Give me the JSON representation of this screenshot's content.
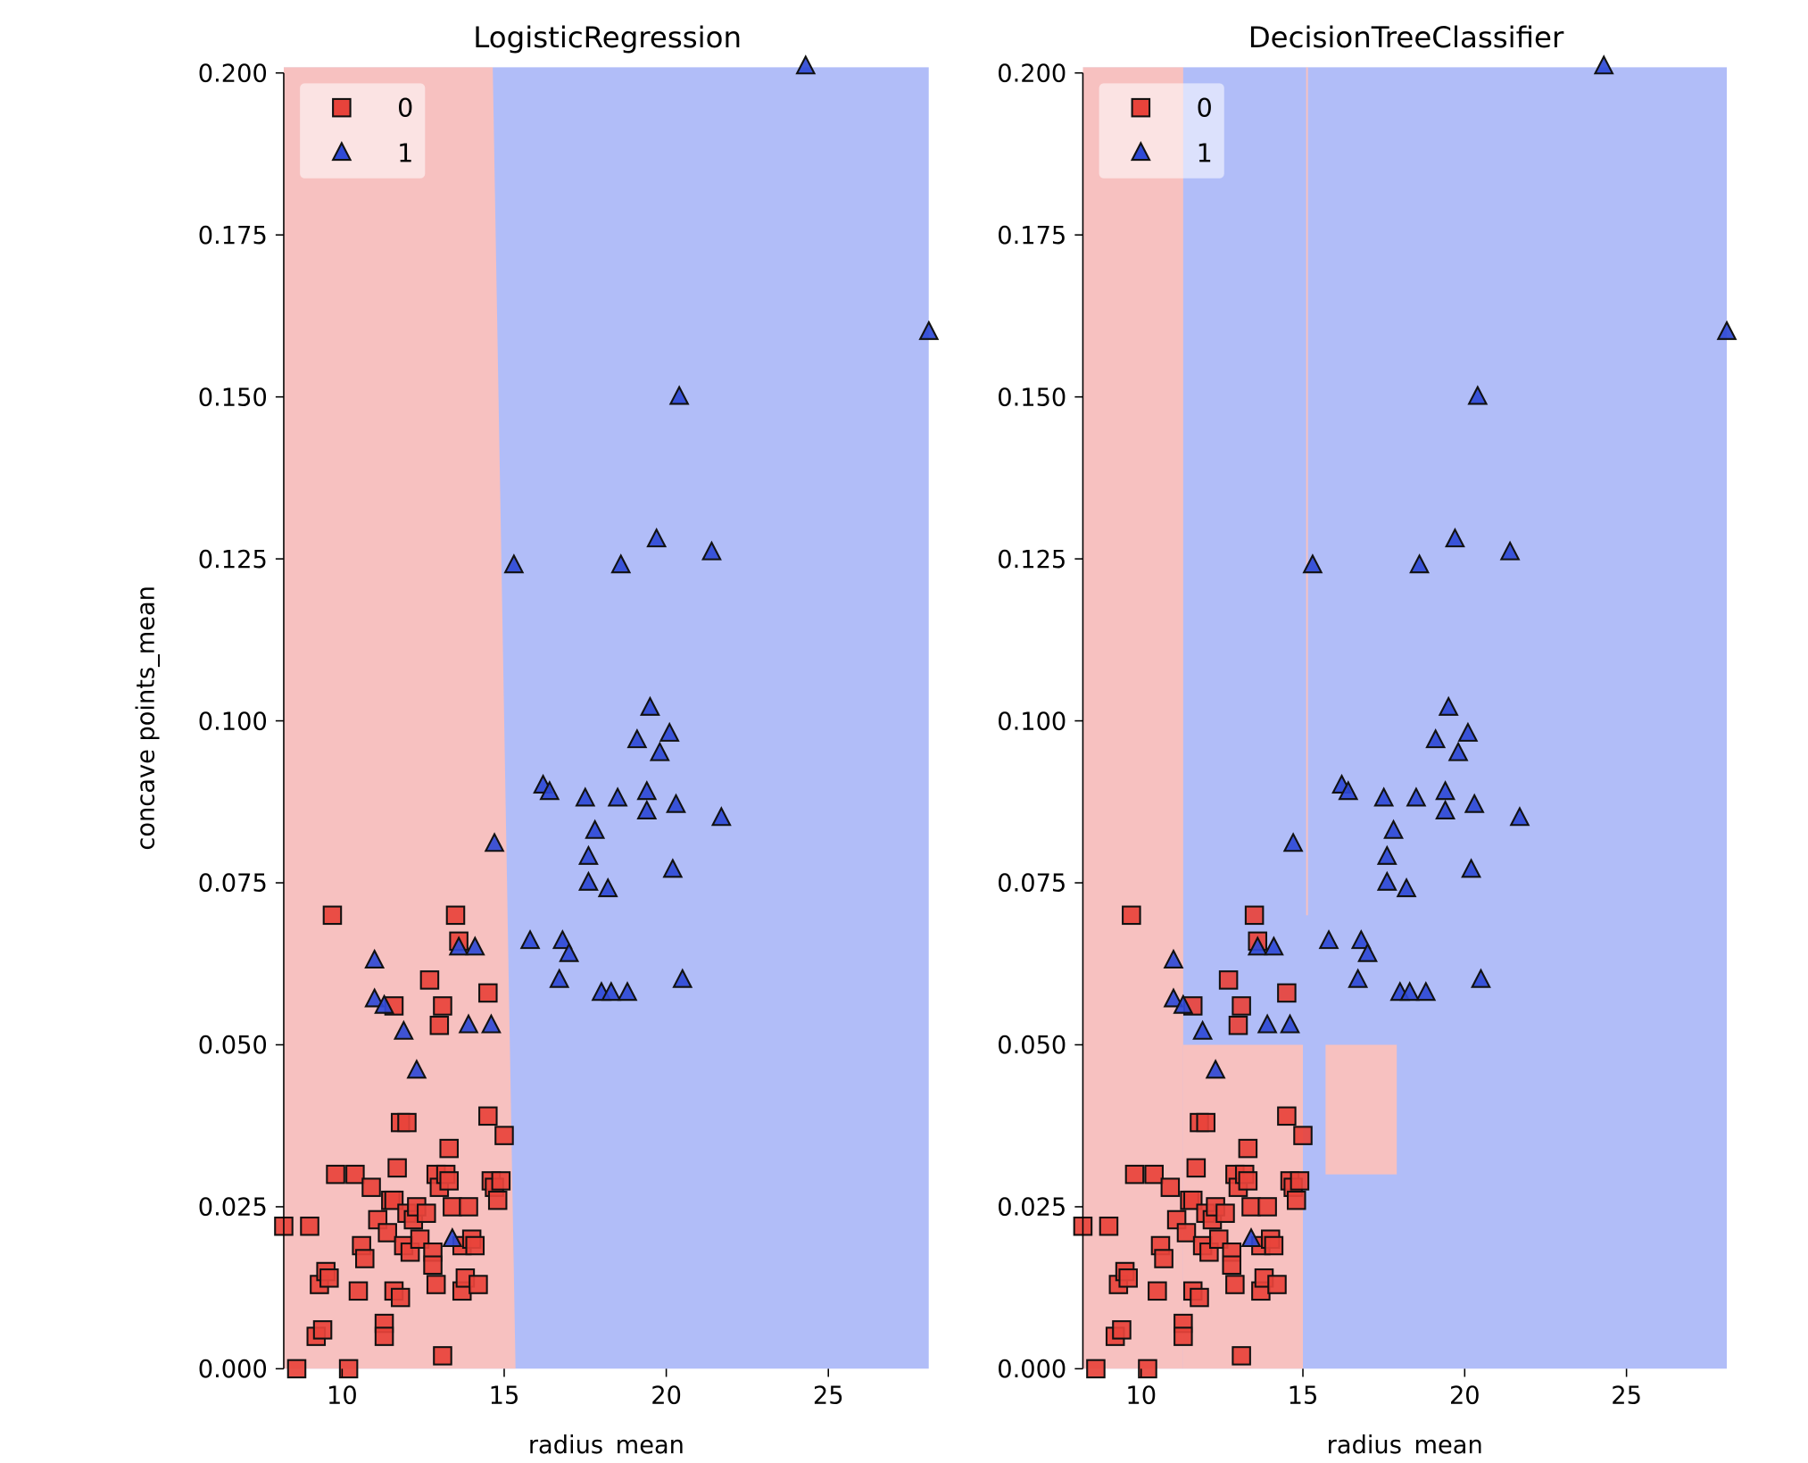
{
  "chart_data": [
    {
      "type": "scatter",
      "title": "LogisticRegression",
      "xlabel": "radius_mean",
      "ylabel": "concave points_mean",
      "xlim": [
        8.2,
        28.1
      ],
      "ylim": [
        0.0,
        0.2
      ],
      "x_ticks": [
        "10",
        "15",
        "20",
        "25"
      ],
      "y_ticks": [
        "0.000",
        "0.025",
        "0.050",
        "0.075",
        "0.100",
        "0.125",
        "0.150",
        "0.175",
        "0.200"
      ],
      "legend": {
        "placement": "upper-left",
        "entries": [
          "0",
          "1"
        ]
      },
      "region_colors": {
        "0": "#f7c1c0",
        "1": "#b1bdf8"
      },
      "decision_boundary": [
        {
          "y": 0.0,
          "x": 15.35
        },
        {
          "y": 0.2,
          "x": 14.65
        }
      ],
      "series": [
        {
          "name": "0",
          "marker": "square",
          "color": "#e8433b",
          "points": [
            [
              8.2,
              0.022
            ],
            [
              8.6,
              0.0
            ],
            [
              9.0,
              0.022
            ],
            [
              9.2,
              0.005
            ],
            [
              9.3,
              0.013
            ],
            [
              9.4,
              0.006
            ],
            [
              9.5,
              0.015
            ],
            [
              9.6,
              0.014
            ],
            [
              9.7,
              0.07
            ],
            [
              9.8,
              0.03
            ],
            [
              10.2,
              0.0
            ],
            [
              10.4,
              0.03
            ],
            [
              10.5,
              0.012
            ],
            [
              10.6,
              0.019
            ],
            [
              10.7,
              0.017
            ],
            [
              10.9,
              0.028
            ],
            [
              11.1,
              0.023
            ],
            [
              11.3,
              0.007
            ],
            [
              11.3,
              0.005
            ],
            [
              11.4,
              0.021
            ],
            [
              11.5,
              0.026
            ],
            [
              11.6,
              0.012
            ],
            [
              11.6,
              0.026
            ],
            [
              11.7,
              0.031
            ],
            [
              11.6,
              0.056
            ],
            [
              11.8,
              0.038
            ],
            [
              11.8,
              0.011
            ],
            [
              11.9,
              0.019
            ],
            [
              12.0,
              0.038
            ],
            [
              12.0,
              0.024
            ],
            [
              12.1,
              0.018
            ],
            [
              12.2,
              0.023
            ],
            [
              12.3,
              0.025
            ],
            [
              12.4,
              0.02
            ],
            [
              12.6,
              0.024
            ],
            [
              12.7,
              0.06
            ],
            [
              12.8,
              0.018
            ],
            [
              12.8,
              0.016
            ],
            [
              12.9,
              0.013
            ],
            [
              12.9,
              0.03
            ],
            [
              13.0,
              0.028
            ],
            [
              13.0,
              0.053
            ],
            [
              13.1,
              0.002
            ],
            [
              13.1,
              0.056
            ],
            [
              13.2,
              0.03
            ],
            [
              13.3,
              0.034
            ],
            [
              13.3,
              0.029
            ],
            [
              13.4,
              0.025
            ],
            [
              13.5,
              0.07
            ],
            [
              13.6,
              0.066
            ],
            [
              13.7,
              0.012
            ],
            [
              13.7,
              0.019
            ],
            [
              13.8,
              0.014
            ],
            [
              13.9,
              0.025
            ],
            [
              14.0,
              0.02
            ],
            [
              14.1,
              0.019
            ],
            [
              14.2,
              0.013
            ],
            [
              14.5,
              0.058
            ],
            [
              14.5,
              0.039
            ],
            [
              14.6,
              0.029
            ],
            [
              14.7,
              0.028
            ],
            [
              14.8,
              0.026
            ],
            [
              14.9,
              0.029
            ],
            [
              15.0,
              0.036
            ]
          ]
        },
        {
          "name": "1",
          "marker": "triangle",
          "color": "#2f4ad6",
          "points": [
            [
              11.0,
              0.063
            ],
            [
              11.0,
              0.057
            ],
            [
              11.3,
              0.056
            ],
            [
              11.9,
              0.052
            ],
            [
              12.3,
              0.046
            ],
            [
              13.4,
              0.02
            ],
            [
              13.6,
              0.065
            ],
            [
              13.9,
              0.053
            ],
            [
              14.1,
              0.065
            ],
            [
              14.6,
              0.053
            ],
            [
              14.7,
              0.081
            ],
            [
              15.3,
              0.124
            ],
            [
              15.8,
              0.066
            ],
            [
              16.2,
              0.09
            ],
            [
              16.4,
              0.089
            ],
            [
              16.7,
              0.06
            ],
            [
              16.8,
              0.066
            ],
            [
              17.0,
              0.064
            ],
            [
              17.5,
              0.088
            ],
            [
              17.6,
              0.079
            ],
            [
              17.6,
              0.075
            ],
            [
              17.8,
              0.083
            ],
            [
              18.0,
              0.058
            ],
            [
              18.2,
              0.074
            ],
            [
              18.3,
              0.058
            ],
            [
              18.5,
              0.088
            ],
            [
              18.6,
              0.124
            ],
            [
              18.8,
              0.058
            ],
            [
              19.1,
              0.097
            ],
            [
              19.4,
              0.086
            ],
            [
              19.4,
              0.089
            ],
            [
              19.5,
              0.102
            ],
            [
              19.7,
              0.128
            ],
            [
              19.8,
              0.095
            ],
            [
              20.1,
              0.098
            ],
            [
              20.2,
              0.077
            ],
            [
              20.3,
              0.087
            ],
            [
              20.4,
              0.15
            ],
            [
              20.5,
              0.06
            ],
            [
              21.4,
              0.126
            ],
            [
              21.7,
              0.085
            ],
            [
              24.3,
              0.201
            ],
            [
              28.1,
              0.16
            ]
          ]
        }
      ]
    },
    {
      "type": "scatter",
      "title": "DecisionTreeClassifier",
      "xlabel": "radius_mean",
      "ylabel": "",
      "xlim": [
        8.2,
        28.1
      ],
      "ylim": [
        0.0,
        0.2
      ],
      "x_ticks": [
        "10",
        "15",
        "20",
        "25"
      ],
      "y_ticks": [
        "0.000",
        "0.025",
        "0.050",
        "0.075",
        "0.100",
        "0.125",
        "0.150",
        "0.175",
        "0.200"
      ],
      "legend": {
        "placement": "upper-left",
        "entries": [
          "0",
          "1"
        ]
      },
      "region_colors": {
        "0": "#f7c1c0",
        "1": "#b1bdf8"
      },
      "class0_regions": [
        {
          "x": [
            8.2,
            11.3
          ],
          "y": [
            0.0,
            0.2
          ]
        },
        {
          "x": [
            11.3,
            15.0
          ],
          "y": [
            0.0,
            0.05
          ]
        },
        {
          "x": [
            15.7,
            17.9
          ],
          "y": [
            0.03,
            0.05
          ]
        },
        {
          "x": [
            15.1,
            15.15
          ],
          "y": [
            0.07,
            0.2
          ]
        }
      ],
      "series": [
        {
          "name": "0",
          "marker": "square",
          "color": "#e8433b",
          "points": [
            [
              8.2,
              0.022
            ],
            [
              8.6,
              0.0
            ],
            [
              9.0,
              0.022
            ],
            [
              9.2,
              0.005
            ],
            [
              9.3,
              0.013
            ],
            [
              9.4,
              0.006
            ],
            [
              9.5,
              0.015
            ],
            [
              9.6,
              0.014
            ],
            [
              9.7,
              0.07
            ],
            [
              9.8,
              0.03
            ],
            [
              10.2,
              0.0
            ],
            [
              10.4,
              0.03
            ],
            [
              10.5,
              0.012
            ],
            [
              10.6,
              0.019
            ],
            [
              10.7,
              0.017
            ],
            [
              10.9,
              0.028
            ],
            [
              11.1,
              0.023
            ],
            [
              11.3,
              0.007
            ],
            [
              11.3,
              0.005
            ],
            [
              11.4,
              0.021
            ],
            [
              11.5,
              0.026
            ],
            [
              11.6,
              0.012
            ],
            [
              11.6,
              0.026
            ],
            [
              11.7,
              0.031
            ],
            [
              11.6,
              0.056
            ],
            [
              11.8,
              0.038
            ],
            [
              11.8,
              0.011
            ],
            [
              11.9,
              0.019
            ],
            [
              12.0,
              0.038
            ],
            [
              12.0,
              0.024
            ],
            [
              12.1,
              0.018
            ],
            [
              12.2,
              0.023
            ],
            [
              12.3,
              0.025
            ],
            [
              12.4,
              0.02
            ],
            [
              12.6,
              0.024
            ],
            [
              12.7,
              0.06
            ],
            [
              12.8,
              0.018
            ],
            [
              12.8,
              0.016
            ],
            [
              12.9,
              0.013
            ],
            [
              12.9,
              0.03
            ],
            [
              13.0,
              0.028
            ],
            [
              13.0,
              0.053
            ],
            [
              13.1,
              0.002
            ],
            [
              13.1,
              0.056
            ],
            [
              13.2,
              0.03
            ],
            [
              13.3,
              0.034
            ],
            [
              13.3,
              0.029
            ],
            [
              13.4,
              0.025
            ],
            [
              13.5,
              0.07
            ],
            [
              13.6,
              0.066
            ],
            [
              13.7,
              0.012
            ],
            [
              13.7,
              0.019
            ],
            [
              13.8,
              0.014
            ],
            [
              13.9,
              0.025
            ],
            [
              14.0,
              0.02
            ],
            [
              14.1,
              0.019
            ],
            [
              14.2,
              0.013
            ],
            [
              14.5,
              0.058
            ],
            [
              14.5,
              0.039
            ],
            [
              14.6,
              0.029
            ],
            [
              14.7,
              0.028
            ],
            [
              14.8,
              0.026
            ],
            [
              14.9,
              0.029
            ],
            [
              15.0,
              0.036
            ]
          ]
        },
        {
          "name": "1",
          "marker": "triangle",
          "color": "#2f4ad6",
          "points": [
            [
              11.0,
              0.063
            ],
            [
              11.0,
              0.057
            ],
            [
              11.3,
              0.056
            ],
            [
              11.9,
              0.052
            ],
            [
              12.3,
              0.046
            ],
            [
              13.4,
              0.02
            ],
            [
              13.6,
              0.065
            ],
            [
              13.9,
              0.053
            ],
            [
              14.1,
              0.065
            ],
            [
              14.6,
              0.053
            ],
            [
              14.7,
              0.081
            ],
            [
              15.3,
              0.124
            ],
            [
              15.8,
              0.066
            ],
            [
              16.2,
              0.09
            ],
            [
              16.4,
              0.089
            ],
            [
              16.7,
              0.06
            ],
            [
              16.8,
              0.066
            ],
            [
              17.0,
              0.064
            ],
            [
              17.5,
              0.088
            ],
            [
              17.6,
              0.079
            ],
            [
              17.6,
              0.075
            ],
            [
              17.8,
              0.083
            ],
            [
              18.0,
              0.058
            ],
            [
              18.2,
              0.074
            ],
            [
              18.3,
              0.058
            ],
            [
              18.5,
              0.088
            ],
            [
              18.6,
              0.124
            ],
            [
              18.8,
              0.058
            ],
            [
              19.1,
              0.097
            ],
            [
              19.4,
              0.086
            ],
            [
              19.4,
              0.089
            ],
            [
              19.5,
              0.102
            ],
            [
              19.7,
              0.128
            ],
            [
              19.8,
              0.095
            ],
            [
              20.1,
              0.098
            ],
            [
              20.2,
              0.077
            ],
            [
              20.3,
              0.087
            ],
            [
              20.4,
              0.15
            ],
            [
              20.5,
              0.06
            ],
            [
              21.4,
              0.126
            ],
            [
              21.7,
              0.085
            ],
            [
              24.3,
              0.201
            ],
            [
              28.1,
              0.16
            ]
          ]
        }
      ]
    }
  ]
}
